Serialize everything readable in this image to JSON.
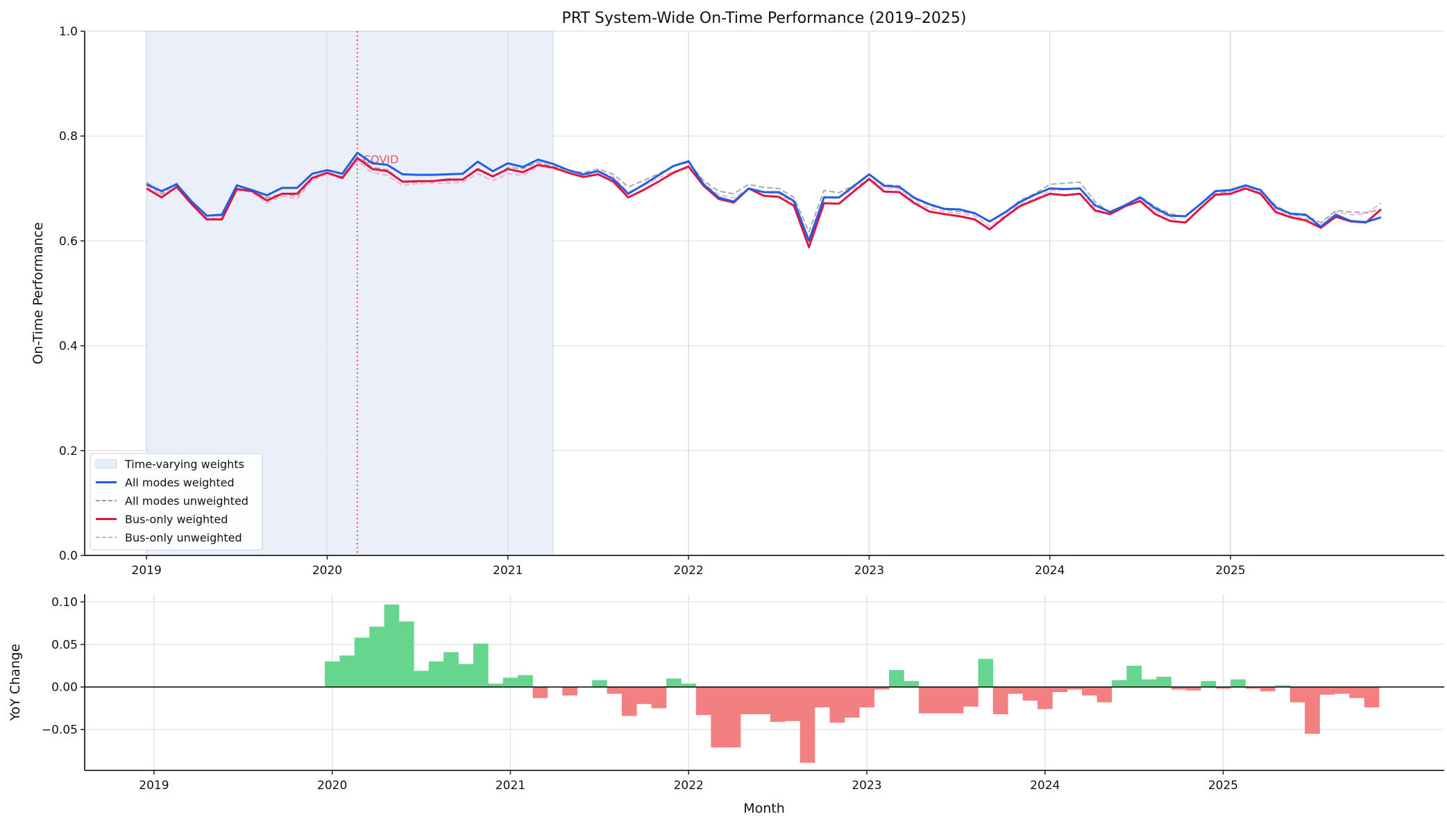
{
  "chart_data": [
    {
      "type": "line",
      "title": "PRT System-Wide On-Time Performance (2019–2025)",
      "xlabel": "",
      "ylabel": "On-Time Performance",
      "ylim": [
        0,
        1.0
      ],
      "xlim": [
        "2018-08-28",
        "2026-03-07"
      ],
      "yticks": [
        "0.0",
        "0.2",
        "0.4",
        "0.6",
        "0.8",
        "1.0"
      ],
      "ytick_values": [
        0,
        0.2,
        0.4,
        0.6,
        0.8,
        1.0
      ],
      "xticks": [
        "2019",
        "2020",
        "2021",
        "2022",
        "2023",
        "2024",
        "2025"
      ],
      "grid": true,
      "legend_position": "lower-left",
      "start_month": "2019-01",
      "shaded_region": {
        "name": "Time-varying weights",
        "from": "2019-01",
        "to": "2021-04",
        "color": "#e8edfa"
      },
      "annotation": {
        "text": "COVID",
        "date": "2020-03",
        "color": "#e05a5a"
      },
      "series": [
        {
          "name": "All modes weighted",
          "style": "solid",
          "color": "#1f5fe6",
          "values": [
            0.708,
            0.695,
            0.708,
            0.675,
            0.648,
            0.65,
            0.706,
            0.697,
            0.687,
            0.701,
            0.701,
            0.728,
            0.735,
            0.728,
            0.768,
            0.748,
            0.745,
            0.727,
            0.726,
            0.726,
            0.727,
            0.728,
            0.751,
            0.733,
            0.748,
            0.741,
            0.755,
            0.747,
            0.735,
            0.727,
            0.733,
            0.718,
            0.69,
            0.707,
            0.725,
            0.743,
            0.752,
            0.708,
            0.683,
            0.675,
            0.7,
            0.693,
            0.693,
            0.676,
            0.6,
            0.683,
            0.683,
            0.705,
            0.727,
            0.705,
            0.703,
            0.682,
            0.67,
            0.661,
            0.66,
            0.653,
            0.637,
            0.654,
            0.674,
            0.688,
            0.7,
            0.699,
            0.7,
            0.668,
            0.655,
            0.668,
            0.683,
            0.662,
            0.648,
            0.647,
            0.67,
            0.695,
            0.697,
            0.706,
            0.697,
            0.664,
            0.652,
            0.65,
            0.627,
            0.65,
            0.638,
            0.636,
            0.645
          ]
        },
        {
          "name": "All modes unweighted",
          "style": "dashed",
          "color": "#9a9a9a",
          "values": [
            0.712,
            0.69,
            0.71,
            0.672,
            0.648,
            0.648,
            0.7,
            0.695,
            0.682,
            0.69,
            0.685,
            0.718,
            0.73,
            0.722,
            0.76,
            0.74,
            0.736,
            0.712,
            0.712,
            0.715,
            0.715,
            0.716,
            0.735,
            0.722,
            0.74,
            0.738,
            0.75,
            0.742,
            0.735,
            0.73,
            0.737,
            0.727,
            0.703,
            0.715,
            0.728,
            0.742,
            0.75,
            0.715,
            0.695,
            0.69,
            0.708,
            0.702,
            0.7,
            0.683,
            0.617,
            0.696,
            0.692,
            0.706,
            0.727,
            0.707,
            0.705,
            0.68,
            0.668,
            0.66,
            0.656,
            0.652,
            0.638,
            0.653,
            0.677,
            0.69,
            0.708,
            0.71,
            0.712,
            0.675,
            0.654,
            0.668,
            0.685,
            0.665,
            0.652,
            0.646,
            0.671,
            0.69,
            0.695,
            0.705,
            0.695,
            0.668,
            0.65,
            0.648,
            0.635,
            0.658,
            0.655,
            0.654,
            0.66
          ]
        },
        {
          "name": "Bus-only weighted",
          "style": "solid",
          "color": "#e0153f",
          "values": [
            0.7,
            0.683,
            0.703,
            0.67,
            0.641,
            0.641,
            0.699,
            0.695,
            0.677,
            0.69,
            0.69,
            0.72,
            0.73,
            0.72,
            0.758,
            0.737,
            0.733,
            0.713,
            0.714,
            0.714,
            0.717,
            0.717,
            0.737,
            0.723,
            0.737,
            0.731,
            0.745,
            0.74,
            0.73,
            0.722,
            0.727,
            0.713,
            0.683,
            0.697,
            0.713,
            0.73,
            0.742,
            0.705,
            0.68,
            0.673,
            0.7,
            0.686,
            0.684,
            0.667,
            0.588,
            0.672,
            0.671,
            0.695,
            0.718,
            0.694,
            0.693,
            0.672,
            0.656,
            0.651,
            0.647,
            0.641,
            0.622,
            0.645,
            0.666,
            0.678,
            0.69,
            0.687,
            0.69,
            0.658,
            0.651,
            0.666,
            0.676,
            0.651,
            0.638,
            0.635,
            0.662,
            0.688,
            0.69,
            0.7,
            0.69,
            0.655,
            0.645,
            0.639,
            0.625,
            0.646,
            0.637,
            0.635,
            0.66
          ]
        },
        {
          "name": "Bus-only unweighted",
          "style": "dashed",
          "color": "#f4a3c4",
          "values": [
            0.705,
            0.688,
            0.703,
            0.668,
            0.643,
            0.643,
            0.697,
            0.693,
            0.672,
            0.686,
            0.68,
            0.715,
            0.728,
            0.718,
            0.752,
            0.73,
            0.725,
            0.706,
            0.709,
            0.71,
            0.71,
            0.712,
            0.728,
            0.715,
            0.728,
            0.725,
            0.742,
            0.738,
            0.73,
            0.724,
            0.733,
            0.722,
            0.693,
            0.705,
            0.72,
            0.733,
            0.738,
            0.71,
            0.688,
            0.682,
            0.7,
            0.692,
            0.69,
            0.672,
            0.605,
            0.685,
            0.683,
            0.7,
            0.72,
            0.7,
            0.699,
            0.675,
            0.662,
            0.656,
            0.652,
            0.648,
            0.628,
            0.648,
            0.67,
            0.68,
            0.696,
            0.697,
            0.7,
            0.662,
            0.65,
            0.665,
            0.68,
            0.657,
            0.645,
            0.633,
            0.664,
            0.688,
            0.692,
            0.703,
            0.692,
            0.66,
            0.648,
            0.643,
            0.632,
            0.655,
            0.65,
            0.652,
            0.672
          ]
        }
      ]
    },
    {
      "type": "bar",
      "title": "",
      "xlabel": "Month",
      "ylabel": "YoY Change",
      "ylim": [
        -0.098,
        0.109
      ],
      "xlim": [
        "2018-08-11",
        "2026-03-28"
      ],
      "yticks": [
        "0.10",
        "0.05",
        "0.00",
        "−0.05"
      ],
      "ytick_values": [
        0.1,
        0.05,
        0,
        -0.05
      ],
      "xticks": [
        "2019",
        "2020",
        "2021",
        "2022",
        "2023",
        "2024",
        "2025"
      ],
      "grid": true,
      "start_month": "2020-01",
      "positive_color": "#66d68e",
      "negative_color": "#f28080",
      "values": [
        0.03,
        0.037,
        0.058,
        0.071,
        0.097,
        0.077,
        0.019,
        0.03,
        0.041,
        0.027,
        0.051,
        0.004,
        0.011,
        0.014,
        -0.013,
        0.0,
        -0.01,
        0.0,
        0.008,
        -0.008,
        -0.034,
        -0.02,
        -0.025,
        0.01,
        0.004,
        -0.033,
        -0.071,
        -0.071,
        -0.032,
        -0.032,
        -0.041,
        -0.04,
        -0.089,
        -0.024,
        -0.042,
        -0.036,
        -0.024,
        -0.003,
        0.02,
        0.007,
        -0.031,
        -0.031,
        -0.031,
        -0.023,
        0.033,
        -0.032,
        -0.008,
        -0.016,
        -0.026,
        -0.006,
        -0.003,
        -0.01,
        -0.018,
        0.008,
        0.025,
        0.009,
        0.012,
        -0.003,
        -0.004,
        0.007,
        -0.002,
        0.009,
        -0.002,
        -0.005,
        0.002,
        -0.018,
        -0.055,
        -0.009,
        -0.008,
        -0.013,
        -0.024
      ]
    }
  ]
}
